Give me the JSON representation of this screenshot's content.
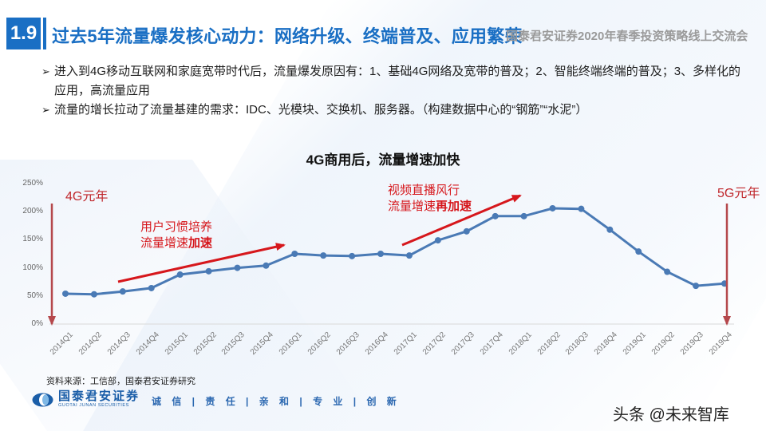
{
  "header": {
    "section_number": "1.9",
    "title": "过去5年流量爆发核心动力：网络升级、终端普及、应用繁荣",
    "conference": "国泰君安证券2020年春季投资策略线上交流会"
  },
  "bullets": [
    {
      "marker": "➢",
      "text": "进入到4G移动互联网和家庭宽带时代后，流量爆发原因有：1、基础4G网络及宽带的普及；2、智能终端终端的普及；3、多样化的应用，高流量应用"
    },
    {
      "marker": "➢",
      "text": "流量的增长拉动了流量基建的需求：IDC、光模块、交换机、服务器。（构建数据中心的“钢筋”“水泥”）"
    }
  ],
  "chart_data": {
    "type": "line",
    "title": "4G商用后，流量增速加快",
    "xlabel": "",
    "ylabel": "",
    "ylim": [
      0,
      250
    ],
    "yticks": [
      "0%",
      "50%",
      "100%",
      "150%",
      "200%",
      "250%"
    ],
    "grid": false,
    "legend": null,
    "categories": [
      "2014Q1",
      "2014Q2",
      "2014Q3",
      "2014Q4",
      "2015Q1",
      "2015Q2",
      "2015Q3",
      "2015Q4",
      "2016Q1",
      "2016Q2",
      "2016Q3",
      "2016Q4",
      "2017Q1",
      "2017Q2",
      "2017Q3",
      "2017Q4",
      "2018Q1",
      "2018Q2",
      "2018Q3",
      "2018Q4",
      "2019Q1",
      "2019Q2",
      "2019Q3",
      "2019Q4"
    ],
    "series": [
      {
        "name": "流量增速",
        "color": "#4a7ab5",
        "values": [
          54,
          53,
          58,
          64,
          88,
          94,
          100,
          104,
          125,
          122,
          121,
          125,
          122,
          149,
          165,
          192,
          192,
          206,
          205,
          168,
          129,
          93,
          68,
          72
        ]
      }
    ],
    "annotations": [
      {
        "text": "4G元年",
        "at": "2014Q1",
        "type": "vertical-arrow",
        "color": "#b5484c"
      },
      {
        "text": "用户习惯培养",
        "text2_prefix": "流量增速",
        "text2_bold": "加速",
        "type": "trend-arrow",
        "color": "#d6171c"
      },
      {
        "text": "视频直播风行",
        "text2_prefix": "流量增速",
        "text2_bold": "再加速",
        "type": "trend-arrow",
        "color": "#d6171c"
      },
      {
        "text": "5G元年",
        "at": "2019Q4",
        "type": "vertical-arrow",
        "color": "#b5484c"
      }
    ]
  },
  "footer": {
    "source": "资料来源：工信部，国泰君安证券研究",
    "logo_cn": "国泰君安证券",
    "logo_en": "GUOTAI JUNAN SECURITIES",
    "slogan": "诚 信 | 责 任 | 亲 和 | 专 业 | 创 新",
    "watermark": "头条 @未来智库"
  },
  "colors": {
    "brand_blue": "#1a6fc4",
    "line_blue": "#4a7ab5",
    "annotation_red": "#d6171c",
    "marker_arrow": "#b5484c"
  }
}
